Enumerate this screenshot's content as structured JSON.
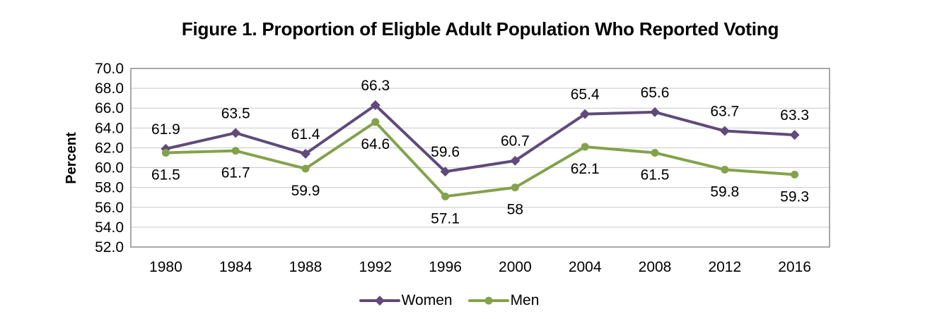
{
  "title": "Figure 1. Proportion of Eligble Adult Population Who Reported Voting",
  "chart_data": {
    "type": "line",
    "title": "Figure 1. Proportion of Eligble Adult Population Who Reported Voting",
    "x": [
      1980,
      1984,
      1988,
      1992,
      1996,
      2000,
      2004,
      2008,
      2012,
      2016
    ],
    "series": [
      {
        "name": "Women",
        "color": "#5F4A7A",
        "marker": "diamond",
        "label_position": "above",
        "values": [
          61.9,
          63.5,
          61.4,
          66.3,
          59.6,
          60.7,
          65.4,
          65.6,
          63.7,
          63.3
        ]
      },
      {
        "name": "Men",
        "color": "#84A24B",
        "marker": "circle",
        "label_position": "below",
        "values": [
          61.5,
          61.7,
          59.9,
          64.6,
          57.1,
          58,
          62.1,
          61.5,
          59.8,
          59.3
        ]
      }
    ],
    "xlabel": "",
    "ylabel": "Percent",
    "ylim": [
      52,
      70
    ],
    "ytick_step": 2,
    "ytick_labels": [
      "52.0",
      "54.0",
      "56.0",
      "58.0",
      "60.0",
      "62.0",
      "64.0",
      "66.0",
      "68.0",
      "70.0"
    ],
    "grid": "horizontal",
    "legend_position": "bottom",
    "colors": {
      "gridline": "#C9C9C9",
      "border": "#8C8C8C",
      "text": "#000000"
    }
  }
}
